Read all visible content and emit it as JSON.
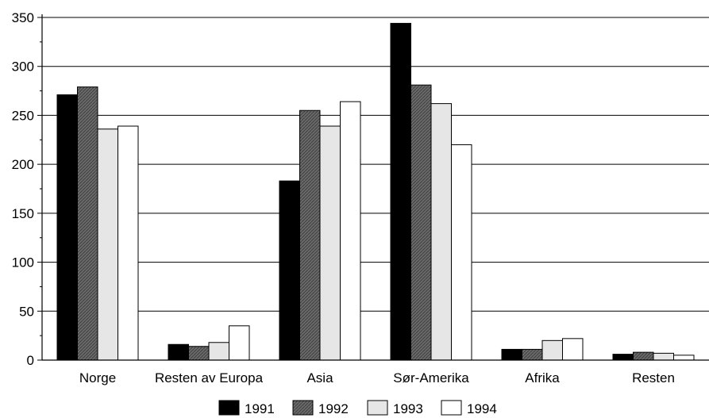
{
  "chart_data": {
    "type": "bar",
    "title": "",
    "xlabel": "",
    "ylabel": "",
    "ylim": [
      0,
      350
    ],
    "yticks": [
      0,
      50,
      100,
      150,
      200,
      250,
      300,
      350
    ],
    "grid": true,
    "legend_position": "bottom",
    "categories": [
      "Norge",
      "Resten av Europa",
      "Asia",
      "Sør-Amerika",
      "Afrika",
      "Resten"
    ],
    "series": [
      {
        "name": "1991",
        "color": "#000000",
        "values": [
          271,
          16,
          183,
          344,
          11,
          6
        ]
      },
      {
        "name": "1992",
        "color": "#5e5e5e",
        "values": [
          279,
          14,
          255,
          281,
          11,
          8
        ]
      },
      {
        "name": "1993",
        "color": "#e6e6e6",
        "values": [
          236,
          18,
          239,
          262,
          20,
          7
        ]
      },
      {
        "name": "1994",
        "color": "#ffffff",
        "values": [
          239,
          35,
          264,
          220,
          22,
          5
        ]
      }
    ]
  }
}
